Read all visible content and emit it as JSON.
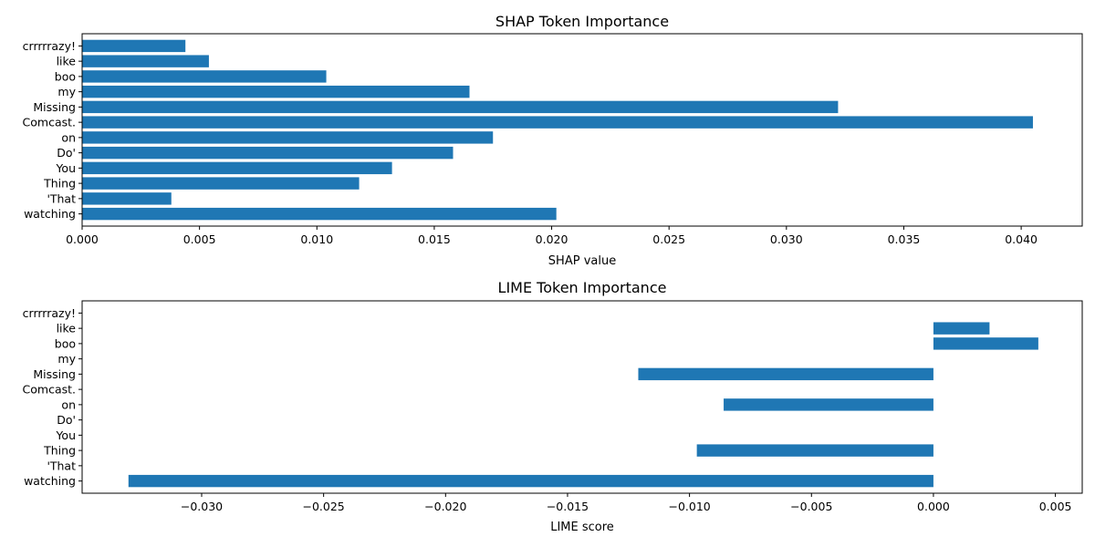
{
  "chart_data": [
    {
      "type": "bar",
      "orientation": "horizontal",
      "title": "SHAP Token Importance",
      "xlabel": "SHAP value",
      "ylabel": "",
      "xlim": [
        0,
        0.0426
      ],
      "xticks": [
        0.0,
        0.005,
        0.01,
        0.015,
        0.02,
        0.025,
        0.03,
        0.035,
        0.04
      ],
      "xtick_labels": [
        "0.000",
        "0.005",
        "0.010",
        "0.015",
        "0.020",
        "0.025",
        "0.030",
        "0.035",
        "0.040"
      ],
      "categories": [
        "crrrrrazy!",
        "like",
        "boo",
        "my",
        "Missing",
        "Comcast.",
        "on",
        "Do'",
        "You",
        "Thing",
        "'That",
        "watching"
      ],
      "values": [
        0.0044,
        0.0054,
        0.0104,
        0.0165,
        0.0322,
        0.0405,
        0.0175,
        0.0158,
        0.0132,
        0.0118,
        0.0038,
        0.0202
      ],
      "color": "#1f77b4",
      "grid": false,
      "legend": null
    },
    {
      "type": "bar",
      "orientation": "horizontal",
      "title": "LIME Token Importance",
      "xlabel": "LIME score",
      "ylabel": "",
      "xlim": [
        -0.0349,
        0.0061
      ],
      "xticks": [
        -0.03,
        -0.025,
        -0.02,
        -0.015,
        -0.01,
        -0.005,
        0.0,
        0.005
      ],
      "xtick_labels": [
        "−0.030",
        "−0.025",
        "−0.020",
        "−0.015",
        "−0.010",
        "−0.005",
        "0.000",
        "0.005"
      ],
      "categories": [
        "crrrrrazy!",
        "like",
        "boo",
        "my",
        "Missing",
        "Comcast.",
        "on",
        "Do'",
        "You",
        "Thing",
        "'That",
        "watching"
      ],
      "values": [
        0,
        0.0023,
        0.0043,
        0,
        -0.0121,
        0,
        -0.0086,
        0,
        0,
        -0.0097,
        0,
        -0.033
      ],
      "color": "#1f77b4",
      "grid": false,
      "legend": null
    }
  ]
}
